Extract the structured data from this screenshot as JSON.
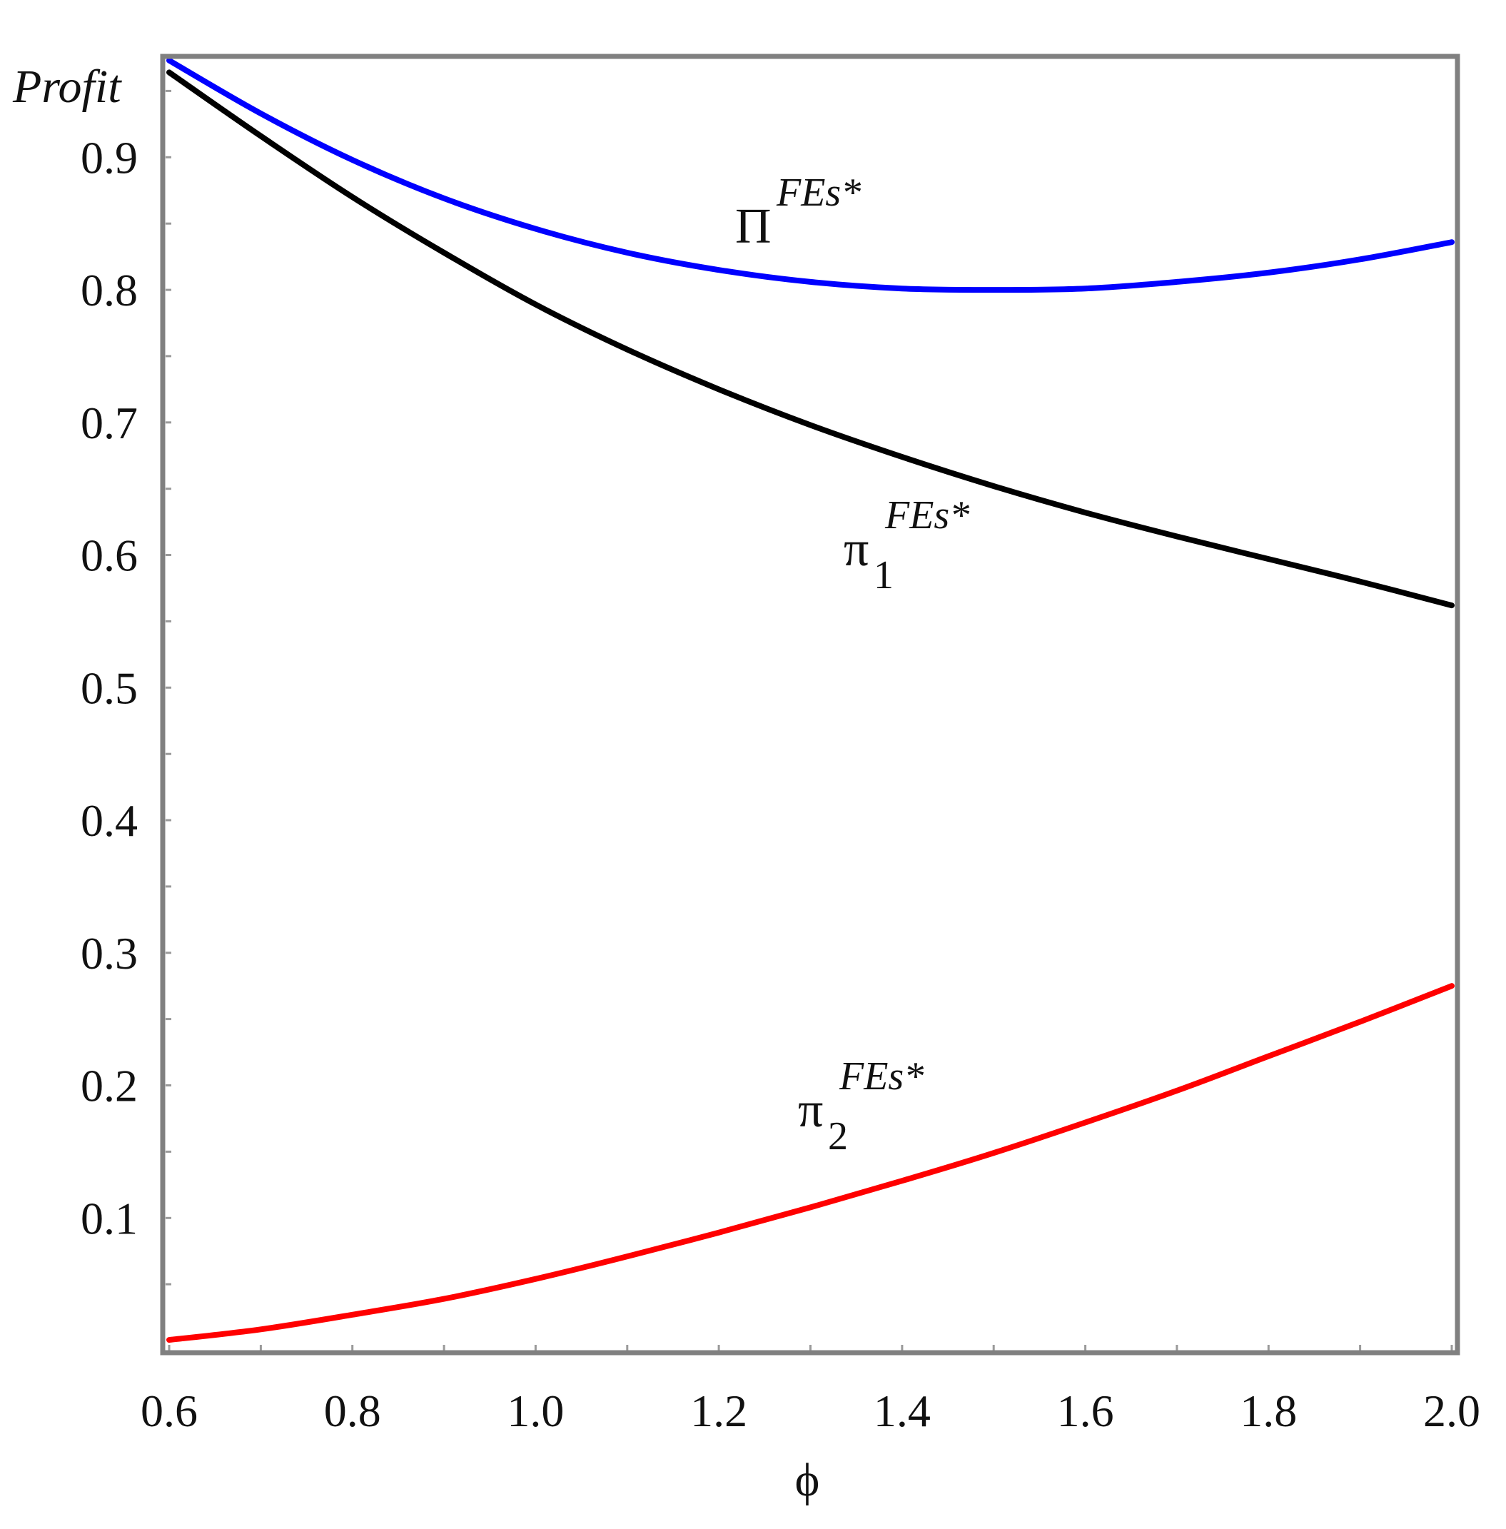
{
  "chart_data": {
    "type": "line",
    "xlabel": "ϕ",
    "ylabel": "Profit",
    "xlim": [
      0.6,
      2.0
    ],
    "ylim": [
      0.0,
      0.975
    ],
    "x_ticks": [
      "0.6",
      "0.8",
      "1.0",
      "1.2",
      "1.4",
      "1.6",
      "1.8",
      "2.0"
    ],
    "y_ticks": [
      "0.1",
      "0.2",
      "0.3",
      "0.4",
      "0.5",
      "0.6",
      "0.7",
      "0.8",
      "0.9"
    ],
    "grid": false,
    "x": [
      0.6,
      0.7,
      0.8,
      0.9,
      1.0,
      1.1,
      1.2,
      1.3,
      1.4,
      1.5,
      1.6,
      1.7,
      1.8,
      1.9,
      2.0
    ],
    "series": [
      {
        "name_base": "Π",
        "name_sub": "",
        "name_sup": "FEs*",
        "color": "#0000ff",
        "values": [
          0.973,
          0.933,
          0.898,
          0.869,
          0.846,
          0.828,
          0.815,
          0.806,
          0.801,
          0.8,
          0.801,
          0.806,
          0.813,
          0.823,
          0.836
        ]
      },
      {
        "name_base": "π",
        "name_sub": "1",
        "name_sup": "FEs*",
        "color": "#000000",
        "values": [
          0.964,
          0.916,
          0.87,
          0.828,
          0.789,
          0.755,
          0.725,
          0.698,
          0.674,
          0.652,
          0.632,
          0.614,
          0.597,
          0.58,
          0.562
        ]
      },
      {
        "name_base": "π",
        "name_sub": "2",
        "name_sup": "FEs*",
        "color": "#ff0000",
        "values": [
          0.008,
          0.016,
          0.027,
          0.039,
          0.054,
          0.071,
          0.089,
          0.108,
          0.128,
          0.149,
          0.172,
          0.196,
          0.222,
          0.248,
          0.275
        ]
      }
    ]
  }
}
